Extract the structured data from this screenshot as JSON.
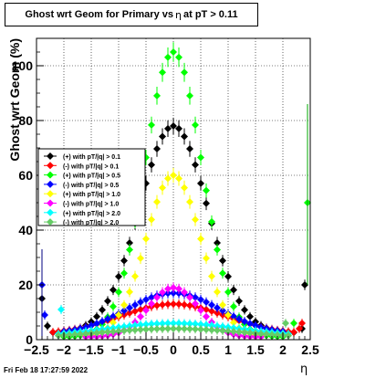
{
  "title": {
    "prefix": "Ghost wrt Geom for Primary vs",
    "symbol": "η",
    "suffix": "at pT > 0.11"
  },
  "footer": {
    "date": "Fri Feb 18 17:27:59 2022"
  },
  "chart_data": {
    "type": "scatter",
    "title": "Ghost wrt Geom for Primary vs η at pT > 0.11",
    "xlabel": "η",
    "ylabel": "Ghost wrt Geom (%)",
    "xlim": [
      -2.5,
      2.5
    ],
    "ylim": [
      0,
      110
    ],
    "grid": true,
    "legend_position": "left",
    "xticks": [
      -2.5,
      -2,
      -1.5,
      -1,
      -0.5,
      0,
      0.5,
      1,
      1.5,
      2,
      2.5
    ],
    "xtick_labels": [
      "−2.5",
      "−2",
      "−1.5",
      "−1",
      "−0.5",
      "0",
      "0.5",
      "1",
      "1.5",
      "2",
      "2.5"
    ],
    "yticks": [
      0,
      20,
      40,
      60,
      80,
      100
    ],
    "ytick_labels": [
      "0",
      "20",
      "40",
      "60",
      "80",
      "100"
    ],
    "series": [
      {
        "name": "(+) with pT/|q| > 0.1",
        "color": "#000000",
        "marker": "diamond",
        "edges": [
          [
            -2.4,
            15
          ],
          [
            -2.3,
            5
          ],
          [
            2.4,
            20
          ],
          [
            2.35,
            4
          ]
        ],
        "gauss": {
          "amp": 78,
          "sigma": 0.62,
          "base": 2.5,
          "half_width": 2.2
        }
      },
      {
        "name": "(-) with pT/|q| > 0.1",
        "color": "#ff0000",
        "marker": "diamond",
        "edges": [
          [
            2.3,
            4
          ],
          [
            2.35,
            6
          ]
        ],
        "gauss": {
          "amp": 13,
          "sigma": 0.95,
          "base": 2,
          "half_width": 2.2
        }
      },
      {
        "name": "(+) with pT/|q| > 0.5",
        "color": "#00ff00",
        "marker": "diamond",
        "edges": [
          [
            2.45,
            50
          ],
          [
            2.2,
            6
          ]
        ],
        "gauss": {
          "amp": 105,
          "sigma": 0.52,
          "base": 1,
          "half_width": 2.0
        }
      },
      {
        "name": "(-) with pT/|q| > 0.5",
        "color": "#0000ff",
        "marker": "diamond",
        "edges": [
          [
            -2.4,
            20
          ],
          [
            -2.35,
            9
          ]
        ],
        "gauss": {
          "amp": 17,
          "sigma": 0.85,
          "base": 2,
          "half_width": 2.0
        }
      },
      {
        "name": "(+) with pT/|q| > 1.0",
        "color": "#ffff00",
        "marker": "diamond",
        "edges": [],
        "gauss": {
          "amp": 60,
          "sigma": 0.5,
          "base": 1,
          "half_width": 1.6
        }
      },
      {
        "name": "(-) with pT/|q| > 1.0",
        "color": "#ff00ff",
        "marker": "diamond",
        "edges": [],
        "gauss": {
          "amp": 19,
          "sigma": 0.45,
          "base": 1,
          "half_width": 1.6
        }
      },
      {
        "name": "(+) with pT/|q| > 2.0",
        "color": "#00ffff",
        "marker": "diamond",
        "edges": [
          [
            -2.05,
            11
          ]
        ],
        "gauss": {
          "amp": 6,
          "sigma": 1.2,
          "base": 1,
          "half_width": 2.1
        }
      },
      {
        "name": "(-) with pT/|q| > 2.0",
        "color": "#66cc66",
        "marker": "diamond",
        "edges": [
          [
            2.05,
            6
          ]
        ],
        "gauss": {
          "amp": 4,
          "sigma": 1.3,
          "base": 0.5,
          "half_width": 2.1
        }
      }
    ]
  }
}
